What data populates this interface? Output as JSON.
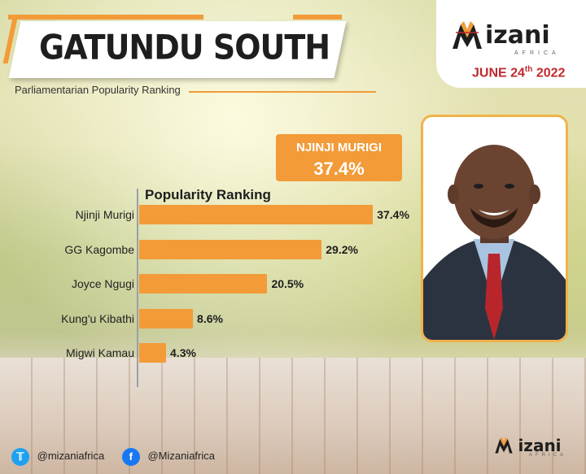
{
  "header": {
    "title": "GATUNDU SOUTH",
    "subtitle": "Parliamentarian Popularity Ranking"
  },
  "brand": {
    "logo_word": "izani",
    "logo_initial": "M",
    "logo_sub": "AFRICA",
    "date_main": "JUNE 24",
    "date_suffix": "th",
    "date_year": " 2022",
    "accent_color": "#f29b38",
    "date_color": "#c0282d"
  },
  "highlight": {
    "name": "NJINJI MURIGI",
    "value": "37.4%"
  },
  "chart_data": {
    "type": "bar",
    "orientation": "horizontal",
    "title": "Popularity Ranking",
    "categories": [
      "Njinji Murigi",
      "GG Kagombe",
      "Joyce Ngugi",
      "Kung'u Kibathi",
      "Migwi Kamau"
    ],
    "values": [
      37.4,
      29.2,
      20.5,
      8.6,
      4.3
    ],
    "value_labels": [
      "37.4%",
      "29.2%",
      "20.5%",
      "8.6%",
      "4.3%"
    ],
    "unit": "%",
    "xlim": [
      0,
      50
    ],
    "grid": false,
    "bar_color": "#f29b38"
  },
  "footer": {
    "twitter_handle": "@mizaniafrica",
    "facebook_handle": "@Mizaniafrica",
    "twitter_icon": "twitter-icon",
    "facebook_icon": "facebook-icon"
  }
}
